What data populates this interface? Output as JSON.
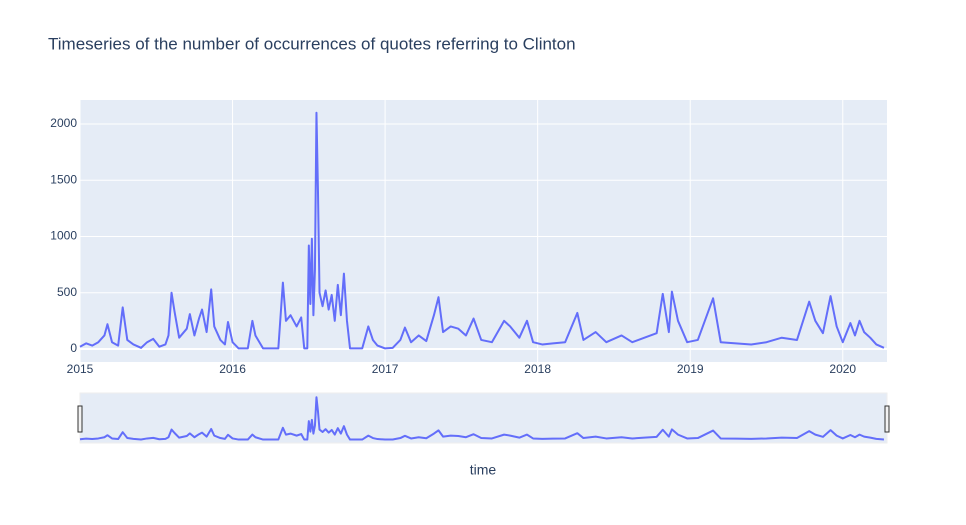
{
  "chart_data": {
    "type": "line",
    "title": "Timeseries of the number of occurrences of quotes referring to Clinton",
    "x_label": "time",
    "x": [
      2015.0,
      2015.04,
      2015.08,
      2015.12,
      2015.16,
      2015.18,
      2015.21,
      2015.25,
      2015.28,
      2015.31,
      2015.35,
      2015.4,
      2015.44,
      2015.48,
      2015.52,
      2015.56,
      2015.58,
      2015.6,
      2015.62,
      2015.65,
      2015.7,
      2015.72,
      2015.75,
      2015.78,
      2015.8,
      2015.83,
      2015.86,
      2015.88,
      2015.92,
      2015.95,
      2015.97,
      2016.0,
      2016.04,
      2016.1,
      2016.13,
      2016.15,
      2016.2,
      2016.3,
      2016.33,
      2016.35,
      2016.38,
      2016.42,
      2016.45,
      2016.47,
      2016.49,
      2016.5,
      2016.51,
      2016.52,
      2016.53,
      2016.54,
      2016.55,
      2016.56,
      2016.57,
      2016.59,
      2016.61,
      2016.63,
      2016.65,
      2016.67,
      2016.69,
      2016.71,
      2016.73,
      2016.75,
      2016.77,
      2016.85,
      2016.89,
      2016.92,
      2016.95,
      2017.0,
      2017.05,
      2017.1,
      2017.13,
      2017.17,
      2017.22,
      2017.27,
      2017.32,
      2017.35,
      2017.38,
      2017.43,
      2017.48,
      2017.53,
      2017.58,
      2017.63,
      2017.7,
      2017.78,
      2017.82,
      2017.88,
      2017.93,
      2017.97,
      2018.03,
      2018.1,
      2018.18,
      2018.26,
      2018.3,
      2018.38,
      2018.45,
      2018.55,
      2018.62,
      2018.7,
      2018.78,
      2018.82,
      2018.86,
      2018.88,
      2018.92,
      2018.98,
      2019.05,
      2019.15,
      2019.2,
      2019.3,
      2019.4,
      2019.5,
      2019.6,
      2019.7,
      2019.78,
      2019.82,
      2019.87,
      2019.92,
      2019.96,
      2020.0,
      2020.05,
      2020.08,
      2020.11,
      2020.14,
      2020.18,
      2020.22,
      2020.27
    ],
    "series": [
      {
        "color": "#636efa",
        "values": [
          20,
          50,
          30,
          60,
          120,
          220,
          60,
          30,
          370,
          80,
          40,
          10,
          60,
          90,
          20,
          40,
          120,
          500,
          330,
          100,
          180,
          310,
          120,
          270,
          350,
          150,
          530,
          200,
          80,
          40,
          240,
          60,
          5,
          5,
          250,
          120,
          5,
          5,
          590,
          250,
          300,
          200,
          280,
          5,
          5,
          920,
          400,
          980,
          300,
          700,
          2100,
          1400,
          500,
          380,
          520,
          350,
          480,
          250,
          570,
          300,
          670,
          250,
          5,
          5,
          200,
          80,
          30,
          5,
          10,
          80,
          190,
          60,
          120,
          70,
          300,
          460,
          150,
          200,
          180,
          120,
          270,
          80,
          60,
          250,
          200,
          100,
          250,
          60,
          40,
          50,
          60,
          320,
          80,
          150,
          60,
          120,
          60,
          100,
          140,
          490,
          150,
          510,
          250,
          60,
          80,
          450,
          60,
          50,
          40,
          60,
          100,
          80,
          420,
          250,
          140,
          470,
          200,
          60,
          230,
          120,
          250,
          150,
          100,
          40,
          10
        ]
      }
    ],
    "xlim": [
      2015,
      2020.29
    ],
    "xticks": [
      2015,
      2016,
      2017,
      2018,
      2019,
      2020
    ],
    "ylim": [
      -116,
      2213
    ],
    "yticks": [
      0,
      500,
      1000,
      1500,
      2000
    ],
    "grid": true,
    "range_slider": true
  }
}
